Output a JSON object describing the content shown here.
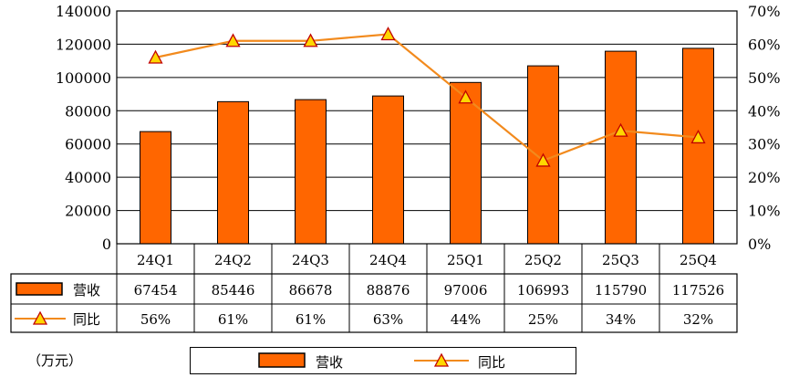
{
  "chart_data": {
    "type": "bar",
    "categories": [
      "24Q1",
      "24Q2",
      "24Q3",
      "24Q4",
      "25Q1",
      "25Q2",
      "25Q3",
      "25Q4"
    ],
    "series": [
      {
        "name": "营收",
        "type": "bar",
        "axis": "left",
        "values": [
          67454,
          85446,
          86678,
          88876,
          97006,
          106993,
          115790,
          117526
        ],
        "labels": [
          "67454",
          "85446",
          "86678",
          "88876",
          "97006",
          "106993",
          "115790",
          "117526"
        ]
      },
      {
        "name": "同比",
        "type": "line",
        "axis": "right",
        "values": [
          56,
          61,
          61,
          63,
          44,
          25,
          34,
          32
        ],
        "labels": [
          "56%",
          "61%",
          "61%",
          "63%",
          "44%",
          "25%",
          "34%",
          "32%"
        ]
      }
    ],
    "left_axis": {
      "min": 0,
      "max": 140000,
      "ticks": [
        "0",
        "20000",
        "40000",
        "60000",
        "80000",
        "100000",
        "120000",
        "140000"
      ]
    },
    "right_axis": {
      "min": 0,
      "max": 70,
      "ticks": [
        "0%",
        "10%",
        "20%",
        "30%",
        "40%",
        "50%",
        "60%",
        "70%"
      ]
    },
    "unit_label": "（万元）",
    "grid": true,
    "legend_position": "bottom",
    "colors": {
      "bar": "#FF6600",
      "bar_edge": "#000000",
      "line": "#F28A1D",
      "marker_fill": "#FFD700",
      "marker_edge": "#C00000"
    }
  }
}
